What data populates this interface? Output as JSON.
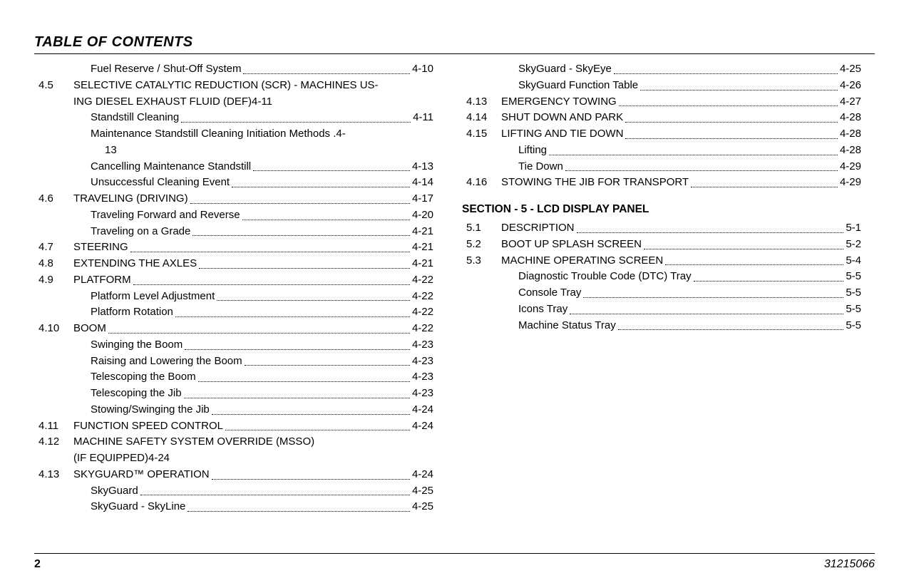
{
  "title": "TABLE OF CONTENTS",
  "footer": {
    "pageNumber": "2",
    "docNumber": "31215066"
  },
  "leftColumn": [
    {
      "num": "",
      "indent": 2,
      "text": "Fuel Reserve / Shut-Off System",
      "page": "4-10",
      "dots": true
    },
    {
      "num": "4.5",
      "indent": 1,
      "text": "SELECTIVE CATALYTIC REDUCTION (SCR) - MACHINES US-",
      "page": "",
      "dots": false
    },
    {
      "num": "",
      "indent": 1,
      "text": "ING DIESEL EXHAUST FLUID (DEF)4-11",
      "page": "",
      "dots": false
    },
    {
      "num": "",
      "indent": 2,
      "text": "Standstill Cleaning ",
      "page": "4-11",
      "dots": true
    },
    {
      "num": "",
      "indent": 2,
      "text": "Maintenance Standstill Cleaning Initiation Methods . ",
      "page": "4-",
      "dots": false
    },
    {
      "num": "",
      "indent": 3,
      "text": "13",
      "page": "",
      "dots": false
    },
    {
      "num": "",
      "indent": 2,
      "text": "Cancelling Maintenance Standstill ",
      "page": "4-13",
      "dots": true
    },
    {
      "num": "",
      "indent": 2,
      "text": "Unsuccessful Cleaning Event",
      "page": "4-14",
      "dots": true
    },
    {
      "num": "4.6",
      "indent": 1,
      "text": "TRAVELING (DRIVING)",
      "page": "4-17",
      "dots": true
    },
    {
      "num": "",
      "indent": 2,
      "text": "Traveling Forward and Reverse ",
      "page": "4-20",
      "dots": true
    },
    {
      "num": "",
      "indent": 2,
      "text": "Traveling on a Grade ",
      "page": "4-21",
      "dots": true
    },
    {
      "num": "4.7",
      "indent": 1,
      "text": "STEERING",
      "page": "4-21",
      "dots": true
    },
    {
      "num": "4.8",
      "indent": 1,
      "text": "EXTENDING THE AXLES ",
      "page": "4-21",
      "dots": true
    },
    {
      "num": "4.9",
      "indent": 1,
      "text": "PLATFORM ",
      "page": "4-22",
      "dots": true
    },
    {
      "num": "",
      "indent": 2,
      "text": "Platform Level Adjustment ",
      "page": "4-22",
      "dots": true
    },
    {
      "num": "",
      "indent": 2,
      "text": "Platform Rotation ",
      "page": "4-22",
      "dots": true
    },
    {
      "num": "4.10",
      "indent": 1,
      "text": "BOOM",
      "page": "4-22",
      "dots": true
    },
    {
      "num": "",
      "indent": 2,
      "text": "Swinging the Boom ",
      "page": "4-23",
      "dots": true
    },
    {
      "num": "",
      "indent": 2,
      "text": "Raising and Lowering the Boom ",
      "page": "4-23",
      "dots": true
    },
    {
      "num": "",
      "indent": 2,
      "text": "Telescoping the Boom",
      "page": "4-23",
      "dots": true
    },
    {
      "num": "",
      "indent": 2,
      "text": "Telescoping the Jib",
      "page": "4-23",
      "dots": true
    },
    {
      "num": "",
      "indent": 2,
      "text": "Stowing/Swinging the Jib ",
      "page": "4-24",
      "dots": true
    },
    {
      "num": "4.11",
      "indent": 1,
      "text": "FUNCTION SPEED CONTROL ",
      "page": "4-24",
      "dots": true
    },
    {
      "num": "4.12",
      "indent": 1,
      "text": "MACHINE SAFETY SYSTEM OVERRIDE (MSSO)",
      "page": "",
      "dots": false
    },
    {
      "num": "",
      "indent": 1,
      "text": "(IF EQUIPPED)4-24",
      "page": "",
      "dots": false
    },
    {
      "num": "4.13",
      "indent": 1,
      "text": "SKYGUARD™ OPERATION ",
      "page": "4-24",
      "dots": true
    },
    {
      "num": "",
      "indent": 2,
      "text": "SkyGuard ",
      "page": "4-25",
      "dots": true
    },
    {
      "num": "",
      "indent": 2,
      "text": "SkyGuard - SkyLine ",
      "page": "4-25",
      "dots": true
    }
  ],
  "rightColumn": [
    {
      "num": "",
      "indent": 2,
      "text": "SkyGuard - SkyEye",
      "page": "4-25",
      "dots": true
    },
    {
      "num": "",
      "indent": 2,
      "text": "SkyGuard Function Table ",
      "page": "4-26",
      "dots": true
    },
    {
      "num": "4.13",
      "indent": 1,
      "text": "EMERGENCY TOWING",
      "page": "4-27",
      "dots": true
    },
    {
      "num": "4.14",
      "indent": 1,
      "text": "SHUT DOWN AND PARK",
      "page": "4-28",
      "dots": true
    },
    {
      "num": "4.15",
      "indent": 1,
      "text": "LIFTING AND TIE DOWN",
      "page": "4-28",
      "dots": true
    },
    {
      "num": "",
      "indent": 2,
      "text": "Lifting ",
      "page": "4-28",
      "dots": true
    },
    {
      "num": "",
      "indent": 2,
      "text": "Tie Down ",
      "page": "4-29",
      "dots": true
    },
    {
      "num": "4.16",
      "indent": 1,
      "text": "STOWING THE JIB FOR TRANSPORT",
      "page": "4-29",
      "dots": true
    }
  ],
  "sectionHeader": "SECTION - 5 - LCD DISPLAY PANEL",
  "section5": [
    {
      "num": "5.1",
      "indent": 1,
      "text": "DESCRIPTION",
      "page": "5-1",
      "dots": true
    },
    {
      "num": "5.2",
      "indent": 1,
      "text": "BOOT UP SPLASH SCREEN",
      "page": "5-2",
      "dots": true
    },
    {
      "num": "5.3",
      "indent": 1,
      "text": "MACHINE OPERATING SCREEN ",
      "page": "5-4",
      "dots": true
    },
    {
      "num": "",
      "indent": 2,
      "text": "Diagnostic Trouble Code (DTC) Tray ",
      "page": "5-5",
      "dots": true
    },
    {
      "num": "",
      "indent": 2,
      "text": "Console Tray ",
      "page": "5-5",
      "dots": true
    },
    {
      "num": "",
      "indent": 2,
      "text": "Icons Tray",
      "page": "5-5",
      "dots": true
    },
    {
      "num": "",
      "indent": 2,
      "text": "Machine Status Tray ",
      "page": "5-5",
      "dots": true
    }
  ]
}
